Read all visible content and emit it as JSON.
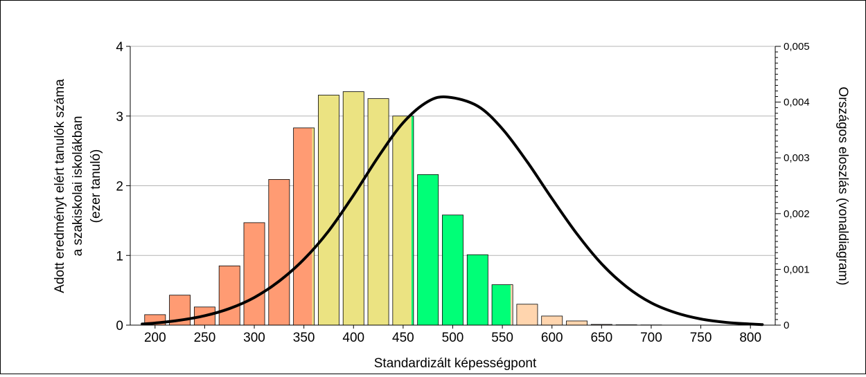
{
  "chart_data": {
    "type": "bar",
    "xlabel": "Standardizált képességpont",
    "ylabel_lines": [
      "Adott eredményt elért tanulók száma",
      "a szakiskolai iskolákban",
      "(ezer tanuló)"
    ],
    "y2label": "Országos eloszlás (vonaldiagram)",
    "xlim": [
      175,
      825
    ],
    "ylim": [
      0,
      4
    ],
    "y2lim": [
      0,
      0.005
    ],
    "x_ticks": [
      "200",
      "250",
      "300",
      "350",
      "400",
      "450",
      "500",
      "550",
      "600",
      "650",
      "700",
      "750",
      "800"
    ],
    "y_ticks": [
      "0",
      "1",
      "2",
      "3",
      "4"
    ],
    "y2_ticks": [
      "0",
      "0,001",
      "0,002",
      "0,003",
      "0,004",
      "0,005"
    ],
    "grid": true,
    "colors": {
      "below": "#FF9B73",
      "mid": "#EBE382",
      "above": "#00FF77",
      "top": "#FFD5AE",
      "curve": "#000000"
    },
    "bars": [
      {
        "x": 200,
        "value": 0.15,
        "segments": [
          {
            "color": "#FF9B73",
            "from": 0,
            "to": 1
          }
        ]
      },
      {
        "x": 225,
        "value": 0.43,
        "segments": [
          {
            "color": "#FF9B73",
            "from": 0,
            "to": 1
          }
        ]
      },
      {
        "x": 250,
        "value": 0.26,
        "segments": [
          {
            "color": "#FF9B73",
            "from": 0,
            "to": 1
          }
        ]
      },
      {
        "x": 275,
        "value": 0.85,
        "segments": [
          {
            "color": "#FF9B73",
            "from": 0,
            "to": 1
          }
        ]
      },
      {
        "x": 300,
        "value": 1.47,
        "segments": [
          {
            "color": "#FF9B73",
            "from": 0,
            "to": 1
          }
        ]
      },
      {
        "x": 325,
        "value": 2.09,
        "segments": [
          {
            "color": "#FF9B73",
            "from": 0,
            "to": 1
          }
        ]
      },
      {
        "x": 350,
        "value": 2.83,
        "segments": [
          {
            "color": "#FF9B73",
            "from": 0,
            "to": 0.9
          },
          {
            "color": "#EBE382",
            "from": 0.9,
            "to": 1
          }
        ]
      },
      {
        "x": 375,
        "value": 3.3,
        "segments": [
          {
            "color": "#EBE382",
            "from": 0,
            "to": 1
          }
        ]
      },
      {
        "x": 400,
        "value": 3.35,
        "segments": [
          {
            "color": "#EBE382",
            "from": 0,
            "to": 1
          }
        ]
      },
      {
        "x": 425,
        "value": 3.25,
        "segments": [
          {
            "color": "#EBE382",
            "from": 0,
            "to": 1
          }
        ]
      },
      {
        "x": 450,
        "value": 3.0,
        "segments": [
          {
            "color": "#EBE382",
            "from": 0,
            "to": 0.9
          },
          {
            "color": "#00FF77",
            "from": 0.9,
            "to": 1
          }
        ]
      },
      {
        "x": 475,
        "value": 2.16,
        "segments": [
          {
            "color": "#00FF77",
            "from": 0,
            "to": 1
          }
        ]
      },
      {
        "x": 500,
        "value": 1.58,
        "segments": [
          {
            "color": "#00FF77",
            "from": 0,
            "to": 1
          }
        ]
      },
      {
        "x": 525,
        "value": 1.01,
        "segments": [
          {
            "color": "#00FF77",
            "from": 0,
            "to": 1
          }
        ]
      },
      {
        "x": 550,
        "value": 0.58,
        "segments": [
          {
            "color": "#00FF77",
            "from": 0,
            "to": 0.9
          },
          {
            "color": "#FFD5AE",
            "from": 0.9,
            "to": 1
          }
        ]
      },
      {
        "x": 575,
        "value": 0.3,
        "segments": [
          {
            "color": "#FFD5AE",
            "from": 0,
            "to": 1
          }
        ]
      },
      {
        "x": 600,
        "value": 0.13,
        "segments": [
          {
            "color": "#FFD5AE",
            "from": 0,
            "to": 1
          }
        ]
      },
      {
        "x": 625,
        "value": 0.06,
        "segments": [
          {
            "color": "#FFD5AE",
            "from": 0,
            "to": 1
          }
        ]
      },
      {
        "x": 650,
        "value": 0.01,
        "segments": [
          {
            "color": "#FFD5AE",
            "from": 0,
            "to": 1
          }
        ]
      },
      {
        "x": 675,
        "value": 0.005,
        "segments": [
          {
            "color": "#FFD5AE",
            "from": 0,
            "to": 1
          }
        ]
      },
      {
        "x": 700,
        "value": 0.003,
        "segments": [
          {
            "color": "#FFD5AE",
            "from": 0,
            "to": 1
          }
        ]
      }
    ],
    "curve": {
      "axis": "right",
      "points": [
        [
          187,
          2e-05
        ],
        [
          200,
          3.7e-05
        ],
        [
          225,
          8.8e-05
        ],
        [
          250,
          0.000168
        ],
        [
          275,
          0.000297
        ],
        [
          300,
          0.000495
        ],
        [
          325,
          0.000788
        ],
        [
          350,
          0.00118
        ],
        [
          375,
          0.00169
        ],
        [
          400,
          0.00233
        ],
        [
          425,
          0.00302
        ],
        [
          450,
          0.00363
        ],
        [
          475,
          0.00401
        ],
        [
          495,
          0.00409
        ],
        [
          525,
          0.00393
        ],
        [
          550,
          0.00352
        ],
        [
          575,
          0.00293
        ],
        [
          600,
          0.00227
        ],
        [
          625,
          0.00164
        ],
        [
          650,
          0.0011
        ],
        [
          675,
          0.00069
        ],
        [
          700,
          0.0004
        ],
        [
          725,
          0.00022
        ],
        [
          750,
          0.00011
        ],
        [
          775,
          5e-05
        ],
        [
          800,
          2e-05
        ],
        [
          812,
          1e-05
        ]
      ]
    }
  }
}
